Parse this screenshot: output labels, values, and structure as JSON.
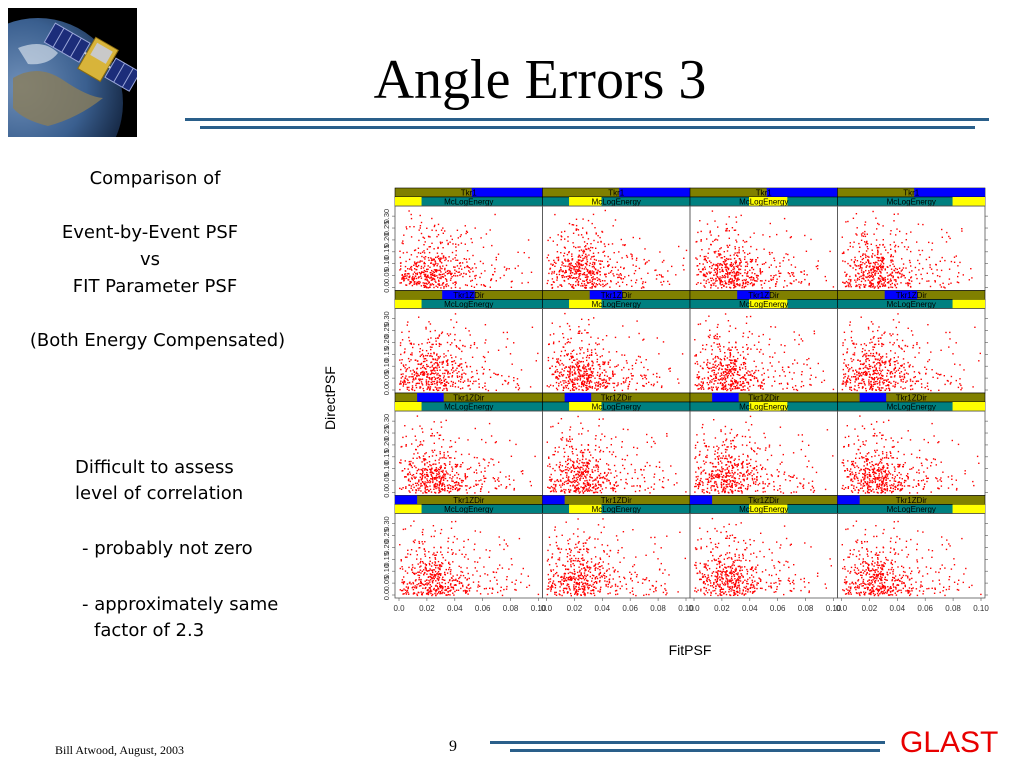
{
  "slide": {
    "title": "Angle Errors 3",
    "footer_author": "Bill Atwood,  August, 2003",
    "page_number": "9",
    "brand": "GLAST",
    "colors": {
      "rule": "#2a5f8a",
      "brand": "#e80000",
      "points": "#ff0000",
      "strip_olive": "#808000",
      "strip_teal": "#008080",
      "strip_blue": "#0000ff",
      "strip_yellow": "#ffff00"
    }
  },
  "left_panel": {
    "line1": "Comparison  of",
    "line2": "Event-by-Event PSF",
    "line3": "vs",
    "line4": "FIT Parameter PSF",
    "line5": "(Both Energy Compensated)",
    "note1": "Difficult to assess",
    "note2": "level of correlation",
    "bullet1": "- probably not zero",
    "bullet2a": "- approximately same",
    "bullet2b": "factor of 2.3"
  },
  "chart_data": {
    "type": "scatter",
    "xlabel": "FitPSF",
    "ylabel": "DirectPSF",
    "xlim": [
      0.0,
      0.1
    ],
    "ylim": [
      0.0,
      0.33
    ],
    "x_ticks": [
      "0.0",
      "0.02",
      "0.04",
      "0.06",
      "0.08",
      "0.10"
    ],
    "y_ticks": [
      "0.0",
      "0.10",
      "0.20",
      "0.30"
    ],
    "y_minor_ticks": [
      "0.05",
      "0.15",
      "0.25"
    ],
    "grid_rows": 4,
    "grid_cols": 4,
    "strip_labels": {
      "top_row1": "Tkr1",
      "top_other": "Tkr1ZDir",
      "bottom": "McLogEnergy"
    },
    "panels_note": "Each panel is a red scatter of DirectPSF vs FitPSF, conditioned on Tkr1ZDir (rows) and McLogEnergy (columns); points concentrate near FitPSF 0.01-0.04, DirectPSF 0.0-0.10"
  }
}
